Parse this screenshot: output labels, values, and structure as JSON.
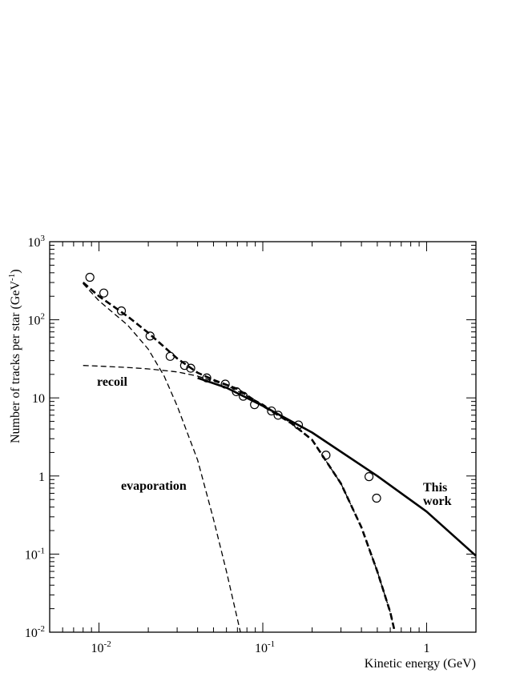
{
  "chart_data": {
    "type": "line",
    "title": "",
    "xlabel": "Kinetic energy (GeV)",
    "ylabel": "Number of tracks per star (GeV",
    "ylabel_sup": "-1",
    "ylabel_close": ")",
    "x_scale": "log",
    "y_scale": "log",
    "xlim": [
      0.005,
      2.0
    ],
    "ylim": [
      0.01,
      1000
    ],
    "x_ticks": [
      {
        "value": 0.01,
        "base": "10",
        "exp": "-2"
      },
      {
        "value": 0.1,
        "base": "10",
        "exp": "-1"
      },
      {
        "value": 1,
        "base": "1",
        "exp": ""
      }
    ],
    "y_ticks": [
      {
        "value": 0.01,
        "base": "10",
        "exp": "-2"
      },
      {
        "value": 0.1,
        "base": "10",
        "exp": "-1"
      },
      {
        "value": 1,
        "base": "1",
        "exp": ""
      },
      {
        "value": 10,
        "base": "10",
        "exp": ""
      },
      {
        "value": 100,
        "base": "10",
        "exp": "2"
      },
      {
        "value": 1000,
        "base": "10",
        "exp": "3"
      }
    ],
    "grid": false,
    "legend": "none",
    "annotations": {
      "recoil": "recoil",
      "evaporation": "evaporation",
      "this_work_line1": "This",
      "this_work_line2": "work"
    },
    "series": [
      {
        "style": "markers-open-circle",
        "x": [
          0.0088,
          0.0107,
          0.0137,
          0.0205,
          0.0272,
          0.0333,
          0.0363,
          0.0455,
          0.059,
          0.069,
          0.076,
          0.089,
          0.113,
          0.124,
          0.165,
          0.243,
          0.445,
          0.495
        ],
        "y": [
          350,
          220,
          130,
          62,
          34,
          26,
          24,
          18,
          15,
          12,
          10.5,
          8.2,
          6.8,
          6.0,
          4.5,
          1.85,
          0.98,
          0.52
        ]
      },
      {
        "style": "thick-solid",
        "x": [
          0.04,
          0.06,
          0.1,
          0.2,
          0.5,
          1.0,
          2.0
        ],
        "y": [
          18,
          13.5,
          7.9,
          3.6,
          1.0,
          0.35,
          0.095
        ]
      },
      {
        "style": "thick-dashed",
        "x": [
          0.008,
          0.01,
          0.015,
          0.02,
          0.03,
          0.04,
          0.05,
          0.07,
          0.1,
          0.15,
          0.2,
          0.3,
          0.4,
          0.5,
          0.6,
          0.64
        ],
        "y": [
          300,
          200,
          110,
          68,
          32,
          21,
          17,
          13,
          7.9,
          4.7,
          2.9,
          0.8,
          0.22,
          0.06,
          0.018,
          0.01
        ]
      },
      {
        "style": "thin-dashed",
        "x": [
          0.008,
          0.01,
          0.015,
          0.02,
          0.025,
          0.03,
          0.04,
          0.05,
          0.06,
          0.073
        ],
        "y": [
          290,
          175,
          85,
          42,
          19,
          7.9,
          1.6,
          0.28,
          0.06,
          0.01
        ]
      },
      {
        "style": "thin-dashed",
        "x": [
          0.008,
          0.01,
          0.015,
          0.02,
          0.03,
          0.04,
          0.06,
          0.1,
          0.15,
          0.2,
          0.3,
          0.4,
          0.5,
          0.6,
          0.64
        ],
        "y": [
          26,
          25.5,
          24.5,
          23.5,
          21.5,
          19,
          14.5,
          8.3,
          4.7,
          2.9,
          0.8,
          0.22,
          0.06,
          0.018,
          0.01
        ]
      }
    ]
  }
}
